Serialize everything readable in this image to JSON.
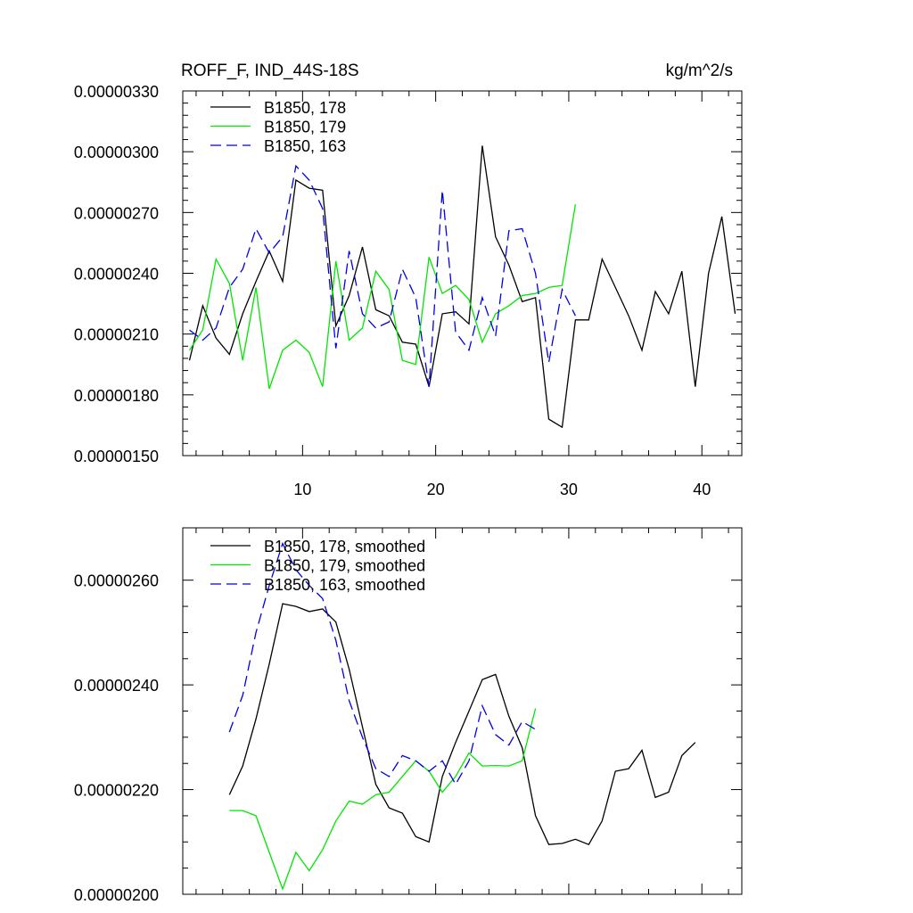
{
  "chart_data": [
    {
      "type": "line",
      "title": "ROFF_F, IND_44S-18S",
      "units_label": "kg/m^2/s",
      "xlim": [
        1,
        43
      ],
      "ylim": [
        1.5e-06,
        3.3e-06
      ],
      "x_ticks": [
        10,
        20,
        30,
        40
      ],
      "y_ticks": [
        "0.00000150",
        "0.00000180",
        "0.00000210",
        "0.00000240",
        "0.00000270",
        "0.00000300",
        "0.00000330"
      ],
      "legend_position": "top-left",
      "series": [
        {
          "name": "B1850, 178",
          "color": "#000000",
          "dash": "",
          "x": [
            1.5,
            2.5,
            3.5,
            4.5,
            5.5,
            6.5,
            7.5,
            8.5,
            9.5,
            10.5,
            11.5,
            12.5,
            13.5,
            14.5,
            15.5,
            16.5,
            17.5,
            18.5,
            19.5,
            20.5,
            21.5,
            22.5,
            23.5,
            24.5,
            25.5,
            26.5,
            27.5,
            28.5,
            29.5,
            30.5,
            31.5,
            32.5,
            33.5,
            34.5,
            35.5,
            36.5,
            37.5,
            38.5,
            39.5,
            40.5,
            41.5,
            42.5
          ],
          "values": [
            1.97e-06,
            2.24e-06,
            2.08e-06,
            2e-06,
            2.2e-06,
            2.36e-06,
            2.51e-06,
            2.36e-06,
            2.86e-06,
            2.82e-06,
            2.81e-06,
            2.14e-06,
            2.29e-06,
            2.53e-06,
            2.22e-06,
            2.19e-06,
            2.06e-06,
            2.05e-06,
            1.84e-06,
            2.2e-06,
            2.21e-06,
            2.15e-06,
            3.03e-06,
            2.58e-06,
            2.44e-06,
            2.26e-06,
            2.28e-06,
            1.68e-06,
            1.64e-06,
            2.17e-06,
            2.17e-06,
            2.47e-06,
            2.33e-06,
            2.19e-06,
            2.02e-06,
            2.31e-06,
            2.2e-06,
            2.41e-06,
            1.84e-06,
            2.4e-06,
            2.68e-06,
            2.2e-06
          ]
        },
        {
          "name": "B1850, 179",
          "color": "#00e600",
          "dash": "",
          "x": [
            1.5,
            2.5,
            3.5,
            4.5,
            5.5,
            6.5,
            7.5,
            8.5,
            9.5,
            10.5,
            11.5,
            12.5,
            13.5,
            14.5,
            15.5,
            16.5,
            17.5,
            18.5,
            19.5,
            20.5,
            21.5,
            22.5,
            23.5,
            24.5,
            25.5,
            26.5,
            27.5,
            28.5,
            29.5,
            30.5
          ],
          "values": [
            2.02e-06,
            2.12e-06,
            2.47e-06,
            2.35e-06,
            1.97e-06,
            2.33e-06,
            1.83e-06,
            2.02e-06,
            2.07e-06,
            2.01e-06,
            1.84e-06,
            2.46e-06,
            2.07e-06,
            2.13e-06,
            2.41e-06,
            2.32e-06,
            1.97e-06,
            1.95e-06,
            2.48e-06,
            2.3e-06,
            2.34e-06,
            2.27e-06,
            2.06e-06,
            2.2e-06,
            2.24e-06,
            2.29e-06,
            2.3e-06,
            2.33e-06,
            2.34e-06,
            2.74e-06
          ]
        },
        {
          "name": "B1850, 163",
          "color": "#0000e6",
          "dash": "12 6",
          "x": [
            1.5,
            2.5,
            3.5,
            4.5,
            5.5,
            6.5,
            7.5,
            8.5,
            9.5,
            10.5,
            11.5,
            12.5,
            13.5,
            14.5,
            15.5,
            16.5,
            17.5,
            18.5,
            19.5,
            20.5,
            21.5,
            22.5,
            23.5,
            24.5,
            25.5,
            26.5,
            27.5,
            28.5,
            29.5,
            30.5
          ],
          "values": [
            2.12e-06,
            2.07e-06,
            2.13e-06,
            2.33e-06,
            2.42e-06,
            2.62e-06,
            2.5e-06,
            2.58e-06,
            2.93e-06,
            2.86e-06,
            2.72e-06,
            2.03e-06,
            2.51e-06,
            2.2e-06,
            2.13e-06,
            2.16e-06,
            2.42e-06,
            2.28e-06,
            1.84e-06,
            2.81e-06,
            2.11e-06,
            2.02e-06,
            2.28e-06,
            2.09e-06,
            2.61e-06,
            2.62e-06,
            2.4e-06,
            1.96e-06,
            2.32e-06,
            2.19e-06
          ]
        }
      ]
    },
    {
      "type": "line",
      "title": "",
      "xlim": [
        1,
        43
      ],
      "ylim": [
        2e-06,
        2.7e-06
      ],
      "y_ticks": [
        "0.00000200",
        "0.00000220",
        "0.00000240",
        "0.00000260"
      ],
      "legend_position": "top-left",
      "series": [
        {
          "name": "B1850, 178, smoothed",
          "color": "#000000",
          "dash": "",
          "x": [
            4.5,
            5.5,
            6.5,
            7.5,
            8.5,
            9.5,
            10.5,
            11.5,
            12.5,
            13.5,
            14.5,
            15.5,
            16.5,
            17.5,
            18.5,
            19.5,
            20.5,
            21.5,
            22.5,
            23.5,
            24.5,
            25.5,
            26.5,
            27.5,
            28.5,
            29.5,
            30.5,
            31.5,
            32.5,
            33.5,
            34.5,
            35.5,
            36.5,
            37.5,
            38.5,
            39.5
          ],
          "values": [
            2.19e-06,
            2.245e-06,
            2.335e-06,
            2.44e-06,
            2.555e-06,
            2.55e-06,
            2.54e-06,
            2.545e-06,
            2.52e-06,
            2.43e-06,
            2.32e-06,
            2.21e-06,
            2.165e-06,
            2.155e-06,
            2.11e-06,
            2.1e-06,
            2.225e-06,
            2.29e-06,
            2.35e-06,
            2.41e-06,
            2.42e-06,
            2.34e-06,
            2.28e-06,
            2.15e-06,
            2.095e-06,
            2.097e-06,
            2.105e-06,
            2.095e-06,
            2.14e-06,
            2.235e-06,
            2.24e-06,
            2.275e-06,
            2.185e-06,
            2.195e-06,
            2.265e-06,
            2.29e-06
          ]
        },
        {
          "name": "B1850, 179, smoothed",
          "color": "#00e600",
          "dash": "",
          "x": [
            4.5,
            5.5,
            6.5,
            7.5,
            8.5,
            9.5,
            10.5,
            11.5,
            12.5,
            13.5,
            14.5,
            15.5,
            16.5,
            17.5,
            18.5,
            19.5,
            20.5,
            21.5,
            22.5,
            23.5,
            24.5,
            25.5,
            26.5,
            27.5
          ],
          "values": [
            2.16e-06,
            2.16e-06,
            2.15e-06,
            2.08e-06,
            2.01e-06,
            2.08e-06,
            2.045e-06,
            2.085e-06,
            2.14e-06,
            2.178e-06,
            2.172e-06,
            2.19e-06,
            2.195e-06,
            2.225e-06,
            2.255e-06,
            2.235e-06,
            2.195e-06,
            2.225e-06,
            2.27e-06,
            2.245e-06,
            2.246e-06,
            2.245e-06,
            2.255e-06,
            2.355e-06
          ]
        },
        {
          "name": "B1850, 163, smoothed",
          "color": "#0000e6",
          "dash": "12 6",
          "x": [
            4.5,
            5.5,
            6.5,
            7.5,
            8.5,
            9.5,
            10.5,
            11.5,
            12.5,
            13.5,
            14.5,
            15.5,
            16.5,
            17.5,
            18.5,
            19.5,
            20.5,
            21.5,
            22.5,
            23.5,
            24.5,
            25.5,
            26.5,
            27.5
          ],
          "values": [
            2.31e-06,
            2.38e-06,
            2.5e-06,
            2.59e-06,
            2.67e-06,
            2.62e-06,
            2.59e-06,
            2.565e-06,
            2.485e-06,
            2.37e-06,
            2.3e-06,
            2.24e-06,
            2.225e-06,
            2.265e-06,
            2.255e-06,
            2.235e-06,
            2.255e-06,
            2.21e-06,
            2.255e-06,
            2.36e-06,
            2.305e-06,
            2.285e-06,
            2.33e-06,
            2.315e-06
          ]
        }
      ]
    }
  ]
}
